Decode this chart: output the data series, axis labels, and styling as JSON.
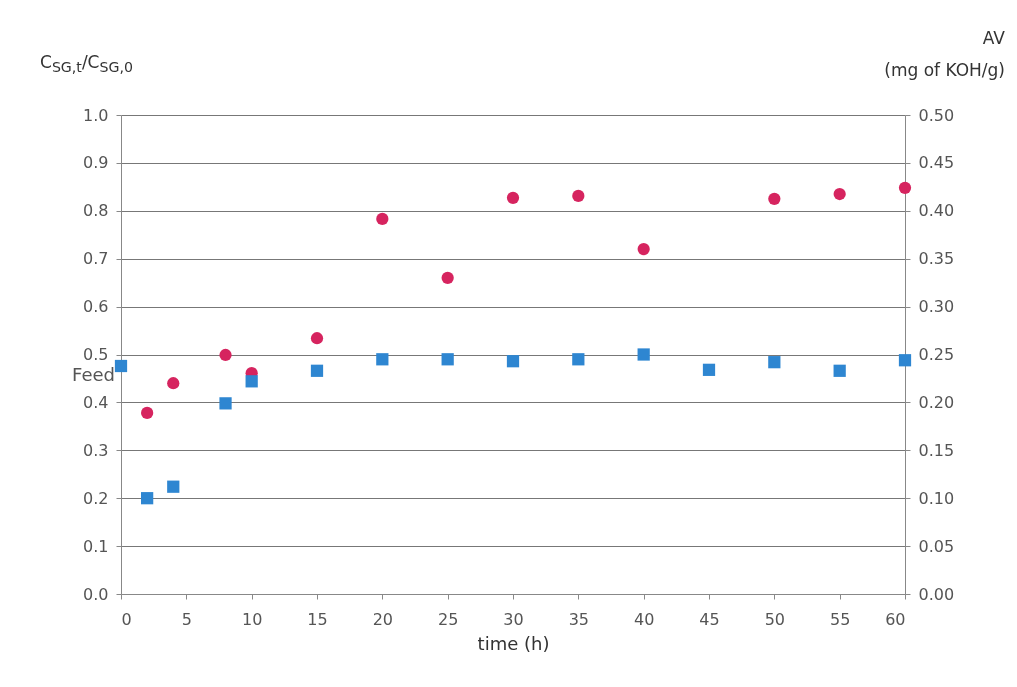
{
  "chart_data": {
    "type": "scatter",
    "xlabel": "time (h)",
    "ylabel": "C$_{SG,t}$/C$_{SG,0}$",
    "y2label": "AV\n(mg of KOH/g)",
    "xlim": [
      0,
      60
    ],
    "xticks": [
      0,
      5,
      10,
      15,
      20,
      25,
      30,
      35,
      40,
      45,
      50,
      55,
      60
    ],
    "ylim": [
      0,
      1
    ],
    "yticks": [
      {
        "value": 0,
        "label": "0.0"
      },
      0.1,
      0.2,
      0.3,
      0.4,
      0.5,
      0.6,
      0.7,
      0.8,
      0.9,
      {
        "value": 1,
        "label": "1.0"
      }
    ],
    "y2lim": [
      0,
      0.5
    ],
    "y2ticks": [
      {
        "value": 0,
        "label": "0.00"
      },
      {
        "value": 0.05,
        "label": "0.05"
      },
      {
        "value": 0.1,
        "label": "0.10"
      },
      {
        "value": 0.15,
        "label": "0.15"
      },
      {
        "value": 0.2,
        "label": "0.20"
      },
      {
        "value": 0.25,
        "label": "0.25"
      },
      {
        "value": 0.3,
        "label": "0.30"
      },
      {
        "value": 0.35,
        "label": "0.35"
      },
      {
        "value": 0.4,
        "label": "0.40"
      },
      {
        "value": 0.45,
        "label": "0.45"
      },
      {
        "value": 0.5,
        "label": "0.50"
      }
    ],
    "grid": "y",
    "annotations": [
      {
        "text": "Feed",
        "x": 0,
        "y": 0.476
      }
    ],
    "series": [
      {
        "color": "#d6245f",
        "marker": "circle",
        "x": [
          2,
          4,
          8,
          10,
          15,
          20,
          25,
          30,
          35,
          40,
          50,
          55,
          60
        ],
        "values": [
          0.378,
          0.44,
          0.499,
          0.461,
          0.534,
          0.783,
          0.66,
          0.827,
          0.831,
          0.72,
          0.825,
          0.835,
          0.848
        ]
      },
      {
        "color": "#2e86d1",
        "marker": "square",
        "axis": "y2",
        "x": [
          0,
          2,
          4,
          8,
          10,
          15,
          20,
          25,
          30,
          35,
          40,
          45,
          50,
          55,
          60
        ],
        "values": [
          0.238,
          0.1,
          0.112,
          0.199,
          0.222,
          0.233,
          0.245,
          0.245,
          0.243,
          0.245,
          0.25,
          0.234,
          0.242,
          0.233,
          0.244
        ]
      }
    ]
  }
}
